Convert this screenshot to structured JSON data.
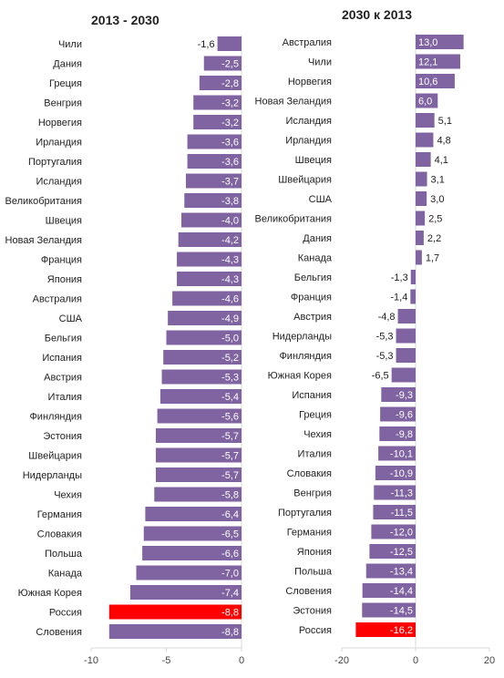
{
  "colors": {
    "bar": "#8064A2",
    "highlight": "#FF0000",
    "gridline": "#d9d9d9"
  },
  "chart_data": [
    {
      "type": "bar",
      "orientation": "horizontal",
      "title": "2013 - 2030",
      "xlim": [
        -10,
        0
      ],
      "xticks": [
        "-10",
        "-5",
        "0"
      ],
      "highlight": [
        "Россия"
      ],
      "categories": [
        "Чили",
        "Дания",
        "Греция",
        "Венгрия",
        "Норвегия",
        "Ирландия",
        "Португалия",
        "Исландия",
        "Великобритания",
        "Швеция",
        "Новая Зеландия",
        "Франция",
        "Япония",
        "Австралия",
        "США",
        "Бельгия",
        "Испания",
        "Австрия",
        "Италия",
        "Финляндия",
        "Эстония",
        "Швейцария",
        "Нидерланды",
        "Чехия",
        "Германия",
        "Словакия",
        "Польша",
        "Канада",
        "Южная Корея",
        "Россия",
        "Словения"
      ],
      "values": [
        -1.6,
        -2.5,
        -2.8,
        -3.2,
        -3.2,
        -3.6,
        -3.6,
        -3.7,
        -3.8,
        -4.0,
        -4.2,
        -4.3,
        -4.3,
        -4.6,
        -4.9,
        -5.0,
        -5.2,
        -5.3,
        -5.4,
        -5.6,
        -5.7,
        -5.7,
        -5.7,
        -5.8,
        -6.4,
        -6.5,
        -6.6,
        -7.0,
        -7.4,
        -8.8,
        -8.8
      ],
      "labels": [
        "-1,6",
        "-2,5",
        "-2,8",
        "-3,2",
        "-3,2",
        "-3,6",
        "-3,6",
        "-3,7",
        "-3,8",
        "-4,0",
        "-4,2",
        "-4,3",
        "-4,3",
        "-4,6",
        "-4,9",
        "-5,0",
        "-5,2",
        "-5,3",
        "-5,4",
        "-5,6",
        "-5,7",
        "-5,7",
        "-5,7",
        "-5,8",
        "-6,4",
        "-6,5",
        "-6,6",
        "-7,0",
        "-7,4",
        "-8,8",
        "-8,8"
      ]
    },
    {
      "type": "bar",
      "orientation": "horizontal",
      "title": "2030 к 2013",
      "xlim": [
        -20,
        20
      ],
      "xticks": [
        "-20",
        "0",
        "20"
      ],
      "highlight": [
        "Россия"
      ],
      "categories": [
        "Австралия",
        "Чили",
        "Норвегия",
        "Новая Зеландия",
        "Исландия",
        "Ирландия",
        "Швеция",
        "Швейцария",
        "США",
        "Великобритания",
        "Дания",
        "Канада",
        "Бельгия",
        "Франция",
        "Австрия",
        "Нидерланды",
        "Финляндия",
        "Южная Корея",
        "Испания",
        "Греция",
        "Чехия",
        "Италия",
        "Словакия",
        "Венгрия",
        "Португалия",
        "Германия",
        "Япония",
        "Польша",
        "Словения",
        "Эстония",
        "Россия"
      ],
      "values": [
        13.0,
        12.1,
        10.6,
        6.0,
        5.1,
        4.8,
        4.1,
        3.1,
        3.0,
        2.5,
        2.2,
        1.7,
        -1.3,
        -1.4,
        -4.8,
        -5.3,
        -5.3,
        -6.5,
        -9.3,
        -9.6,
        -9.8,
        -10.1,
        -10.9,
        -11.3,
        -11.5,
        -12.0,
        -12.5,
        -13.4,
        -14.4,
        -14.5,
        -16.2
      ],
      "labels": [
        "13,0",
        "12,1",
        "10,6",
        "6,0",
        "5,1",
        "4,8",
        "4,1",
        "3,1",
        "3,0",
        "2,5",
        "2,2",
        "1,7",
        "-1,3",
        "-1,4",
        "-4,8",
        "-5,3",
        "-5,3",
        "-6,5",
        "-9,3",
        "-9,6",
        "-9,8",
        "-10,1",
        "-10,9",
        "-11,3",
        "-11,5",
        "-12,0",
        "-12,5",
        "-13,4",
        "-14,4",
        "-14,5",
        "-16,2"
      ]
    }
  ]
}
